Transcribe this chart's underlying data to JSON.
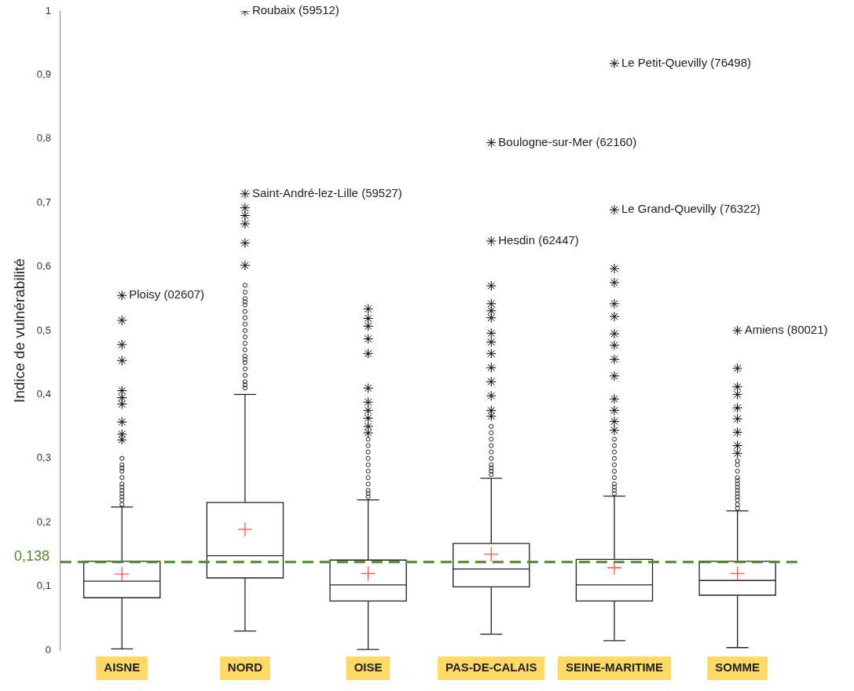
{
  "chart_data": {
    "type": "box",
    "ylabel": "Indice de vulnérabilité",
    "categories": [
      "AISNE",
      "NORD",
      "OISE",
      "PAS-DE-CALAIS",
      "SEINE-MARITIME",
      "SOMME"
    ],
    "ylim": [
      0,
      1
    ],
    "yticks": [
      0,
      {
        "value": 0.1,
        "label": "0,1"
      },
      {
        "value": 0.2,
        "label": "0,2"
      },
      {
        "value": 0.3,
        "label": "0,3"
      },
      {
        "value": 0.4,
        "label": "0,4"
      },
      {
        "value": 0.5,
        "label": "0,5"
      },
      {
        "value": 0.6,
        "label": "0,6"
      },
      {
        "value": 0.7,
        "label": "0,7"
      },
      {
        "value": 0.8,
        "label": "0,8"
      },
      {
        "value": 0.9,
        "label": "0,9"
      },
      1
    ],
    "grid": false,
    "legend": false,
    "boxes": [
      {
        "low": 0.002,
        "q1": 0.082,
        "median": 0.108,
        "q3": 0.139,
        "high": 0.224,
        "mean": 0.119,
        "outliers": [
          0.228,
          0.235,
          0.24,
          0.245,
          0.25,
          0.255,
          0.26,
          0.27,
          0.28,
          0.285,
          0.29,
          0.3
        ]
      },
      {
        "low": 0.03,
        "q1": 0.113,
        "median": 0.148,
        "q3": 0.231,
        "high": 0.4,
        "mean": 0.189,
        "outliers": [
          0.41,
          0.415,
          0.42,
          0.43,
          0.44,
          0.45,
          0.455,
          0.46,
          0.47,
          0.48,
          0.49,
          0.5,
          0.51,
          0.52,
          0.53,
          0.54,
          0.545,
          0.55,
          0.56,
          0.571
        ]
      },
      {
        "low": 0.001,
        "q1": 0.077,
        "median": 0.102,
        "q3": 0.141,
        "high": 0.235,
        "mean": 0.12,
        "outliers": [
          0.24,
          0.245,
          0.25,
          0.26,
          0.27,
          0.28,
          0.29,
          0.3,
          0.31,
          0.32,
          0.33
        ]
      },
      {
        "low": 0.025,
        "q1": 0.099,
        "median": 0.127,
        "q3": 0.167,
        "high": 0.269,
        "mean": 0.15,
        "outliers": [
          0.275,
          0.28,
          0.285,
          0.29,
          0.3,
          0.31,
          0.32,
          0.33,
          0.34,
          0.35
        ]
      },
      {
        "low": 0.015,
        "q1": 0.077,
        "median": 0.102,
        "q3": 0.142,
        "high": 0.241,
        "mean": 0.129,
        "outliers": [
          0.245,
          0.25,
          0.255,
          0.26,
          0.27,
          0.28,
          0.29,
          0.3,
          0.31,
          0.32,
          0.33
        ]
      },
      {
        "low": 0.004,
        "q1": 0.086,
        "median": 0.109,
        "q3": 0.139,
        "high": 0.218,
        "mean": 0.12,
        "outliers": [
          0.222,
          0.228,
          0.235,
          0.24,
          0.245,
          0.25,
          0.255,
          0.26,
          0.265,
          0.27,
          0.28,
          0.29,
          0.296
        ]
      }
    ],
    "series": [
      {
        "type": "scatter",
        "marker": "cross",
        "color": "#000000",
        "x": [
          "AISNE",
          "AISNE",
          "AISNE",
          "AISNE",
          "AISNE",
          "AISNE",
          "AISNE",
          "AISNE",
          "AISNE",
          "AISNE",
          "NORD",
          "NORD",
          "NORD",
          "NORD",
          "NORD",
          "NORD",
          "NORD",
          "OISE",
          "OISE",
          "OISE",
          "OISE",
          "OISE",
          "OISE",
          "OISE",
          "OISE",
          "OISE",
          "OISE",
          "OISE",
          "PAS-DE-CALAIS",
          "PAS-DE-CALAIS",
          "PAS-DE-CALAIS",
          "PAS-DE-CALAIS",
          "PAS-DE-CALAIS",
          "PAS-DE-CALAIS",
          "PAS-DE-CALAIS",
          "PAS-DE-CALAIS",
          "PAS-DE-CALAIS",
          "PAS-DE-CALAIS",
          "PAS-DE-CALAIS",
          "PAS-DE-CALAIS",
          "PAS-DE-CALAIS",
          "PAS-DE-CALAIS",
          "SEINE-MARITIME",
          "SEINE-MARITIME",
          "SEINE-MARITIME",
          "SEINE-MARITIME",
          "SEINE-MARITIME",
          "SEINE-MARITIME",
          "SEINE-MARITIME",
          "SEINE-MARITIME",
          "SEINE-MARITIME",
          "SEINE-MARITIME",
          "SEINE-MARITIME",
          "SEINE-MARITIME",
          "SEINE-MARITIME",
          "SEINE-MARITIME",
          "SOMME",
          "SOMME",
          "SOMME",
          "SOMME",
          "SOMME",
          "SOMME",
          "SOMME",
          "SOMME",
          "SOMME"
        ],
        "values": [
          0.329,
          0.338,
          0.357,
          0.385,
          0.395,
          0.406,
          0.453,
          0.478,
          0.516,
          0.555,
          0.602,
          0.637,
          0.667,
          0.68,
          0.692,
          0.714,
          1.0,
          0.34,
          0.35,
          0.363,
          0.375,
          0.388,
          0.41,
          0.464,
          0.487,
          0.507,
          0.519,
          0.534,
          0.366,
          0.375,
          0.398,
          0.42,
          0.442,
          0.464,
          0.482,
          0.496,
          0.52,
          0.531,
          0.542,
          0.57,
          0.64,
          0.794,
          0.344,
          0.358,
          0.375,
          0.393,
          0.429,
          0.455,
          0.477,
          0.495,
          0.522,
          0.542,
          0.575,
          0.597,
          0.689,
          0.918,
          0.308,
          0.32,
          0.341,
          0.362,
          0.379,
          0.4,
          0.412,
          0.441,
          0.5
        ]
      }
    ],
    "ref_lines": [
      {
        "axis": "y",
        "value": 0.138,
        "label": "0,138",
        "color": "#4e8a2a",
        "line_style": "dashed"
      }
    ],
    "annotations": [
      {
        "text": "Roubaix (59512)",
        "x": "NORD",
        "y": 1.0
      },
      {
        "text": "Le Petit-Quevilly (76498)",
        "x": "SEINE-MARITIME",
        "y": 0.918
      },
      {
        "text": "Saint-André-lez-Lille (59527)",
        "x": "NORD",
        "y": 0.714
      },
      {
        "text": "Boulogne-sur-Mer (62160)",
        "x": "PAS-DE-CALAIS",
        "y": 0.794
      },
      {
        "text": "Hesdin (62447)",
        "x": "PAS-DE-CALAIS",
        "y": 0.64
      },
      {
        "text": "Le Grand-Quevilly (76322)",
        "x": "SEINE-MARITIME",
        "y": 0.689
      },
      {
        "text": "Ploisy (02607)",
        "x": "AISNE",
        "y": 0.555
      },
      {
        "text": "Amiens (80021)",
        "x": "SOMME",
        "y": 0.5
      }
    ]
  }
}
